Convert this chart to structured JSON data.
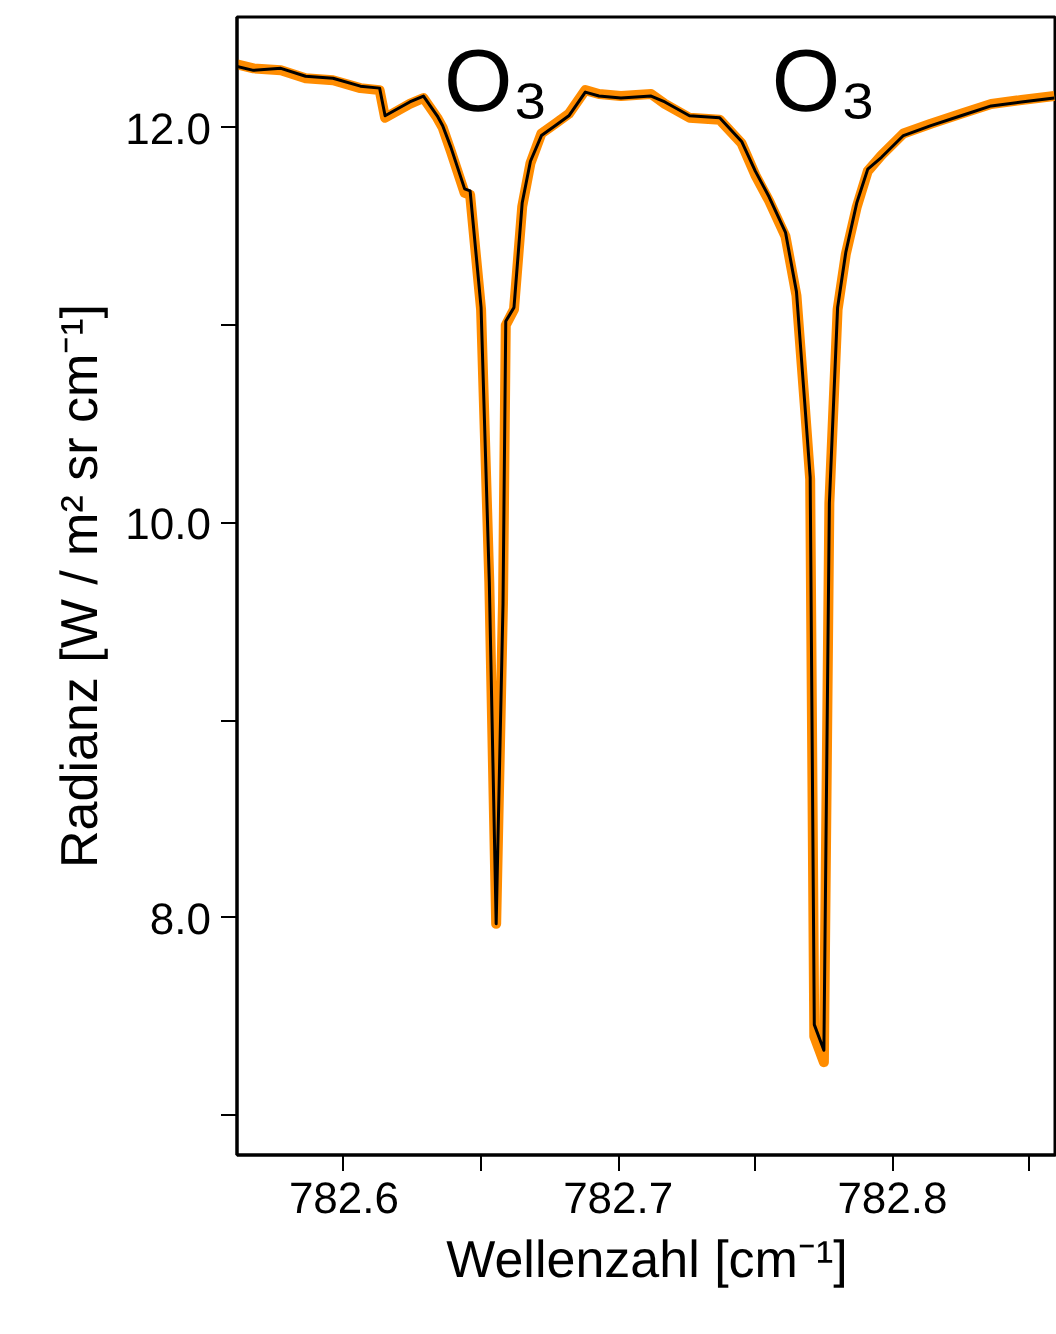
{
  "chart_data": {
    "type": "line",
    "xlabel": "Wellenzahl [cm⁻¹]",
    "ylabel": "Radianz [W / m² sr cm⁻¹]",
    "x": [
      782.561,
      782.567,
      782.577,
      782.586,
      782.596,
      782.606,
      782.613,
      782.615,
      782.624,
      782.629,
      782.634,
      782.636,
      782.639,
      782.644,
      782.646,
      782.65,
      782.653,
      782.6555,
      782.658,
      782.659,
      782.662,
      782.665,
      782.668,
      782.672,
      782.677,
      782.682,
      782.688,
      782.693,
      782.701,
      782.712,
      782.717,
      782.726,
      782.737,
      782.745,
      782.75,
      782.755,
      782.761,
      782.765,
      782.768,
      782.77,
      782.7715,
      782.775,
      782.777,
      782.78,
      782.783,
      782.787,
      782.791,
      782.796,
      782.804,
      782.814,
      782.825,
      782.836,
      782.847,
      782.859
    ],
    "series": [
      {
        "color": "#ff8c00",
        "values": [
          12.32,
          12.3,
          12.29,
          12.25,
          12.24,
          12.2,
          12.19,
          12.05,
          12.12,
          12.15,
          12.05,
          12.0,
          11.88,
          11.67,
          11.66,
          11.08,
          9.7,
          7.97,
          9.6,
          11.0,
          11.08,
          11.6,
          11.82,
          11.97,
          12.02,
          12.07,
          12.19,
          12.17,
          12.16,
          12.17,
          12.12,
          12.05,
          12.04,
          11.92,
          11.76,
          11.63,
          11.45,
          11.15,
          10.6,
          10.22,
          7.4,
          7.27,
          10.1,
          11.08,
          11.36,
          11.6,
          11.78,
          11.86,
          11.97,
          12.02,
          12.07,
          12.12,
          12.14,
          12.16
        ]
      },
      {
        "color": "#000000",
        "values": [
          12.31,
          12.29,
          12.3,
          12.26,
          12.25,
          12.21,
          12.2,
          12.06,
          12.13,
          12.16,
          12.06,
          12.01,
          11.9,
          11.69,
          11.68,
          11.09,
          9.7,
          7.97,
          9.59,
          11.02,
          11.09,
          11.62,
          11.83,
          11.96,
          12.01,
          12.06,
          12.18,
          12.16,
          12.15,
          12.16,
          12.13,
          12.06,
          12.05,
          11.93,
          11.78,
          11.65,
          11.47,
          11.17,
          10.61,
          10.23,
          7.46,
          7.33,
          10.1,
          11.09,
          11.37,
          11.62,
          11.79,
          11.85,
          11.96,
          12.01,
          12.06,
          12.11,
          12.13,
          12.15
        ]
      }
    ],
    "xlim": [
      782.561,
      782.86
    ],
    "ylim": [
      6.8,
      12.56
    ],
    "xticks": [
      782.6,
      {
        "value": 782.65,
        "label": null
      },
      782.7,
      {
        "value": 782.75,
        "label": null
      },
      782.8,
      {
        "value": 782.85,
        "label": null
      }
    ],
    "yticks": [
      {
        "value": 7.0,
        "label": null
      },
      {
        "value": 8.0,
        "label": "8.0"
      },
      {
        "value": 9.0,
        "label": null
      },
      {
        "value": 10.0,
        "label": "10.0"
      },
      {
        "value": 11.0,
        "label": null
      },
      {
        "value": 12.0,
        "label": "12.0"
      }
    ],
    "annotations": [
      "O₃",
      "O₃"
    ],
    "grid": false
  }
}
